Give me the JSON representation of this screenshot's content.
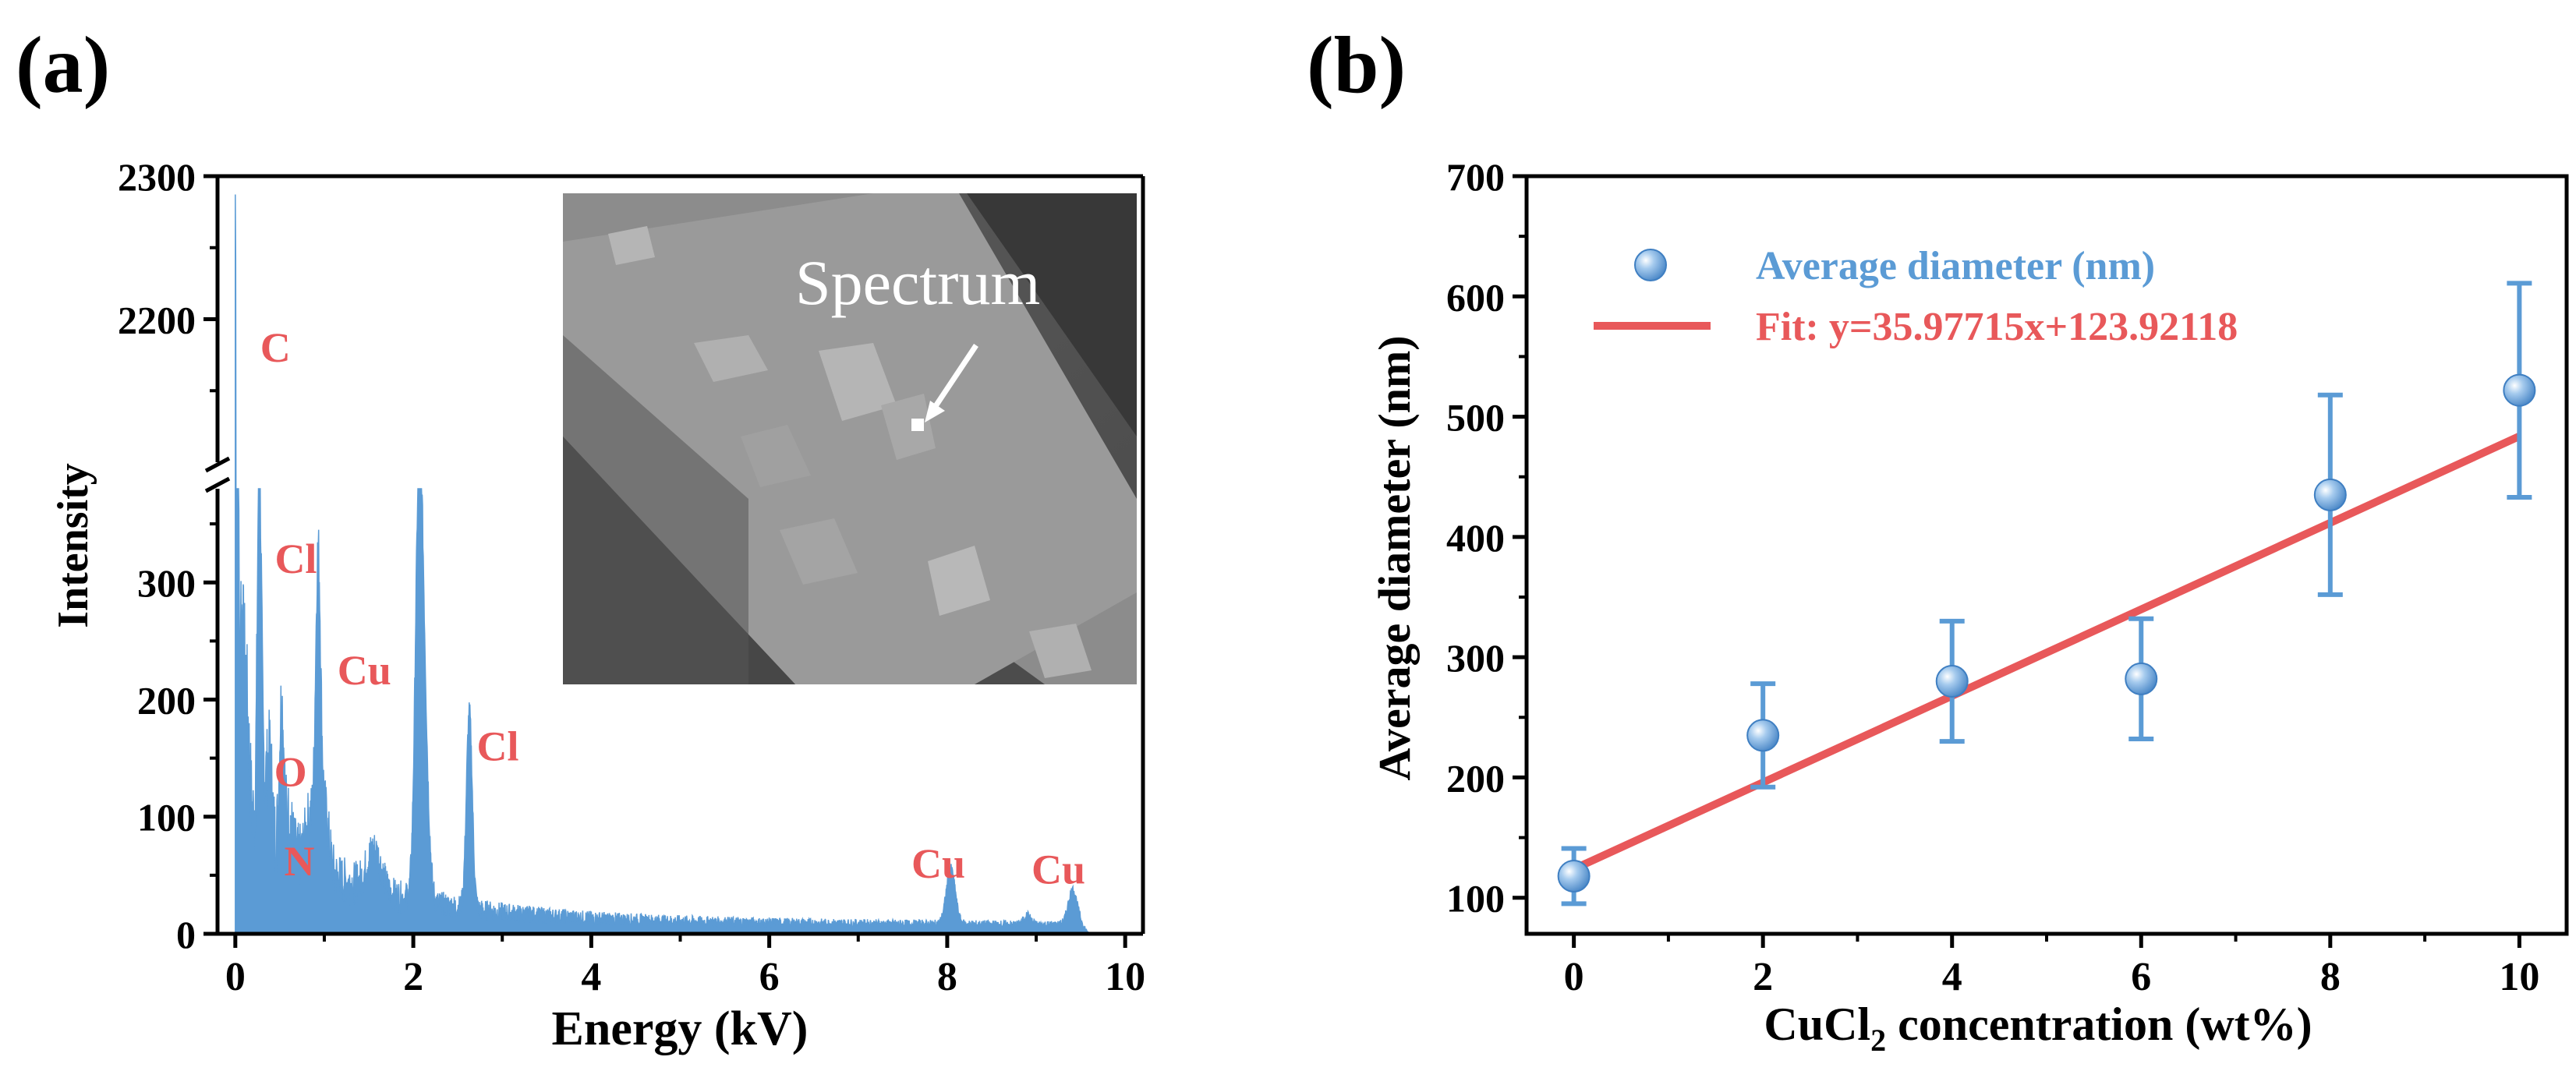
{
  "panel_a_label": "(a)",
  "panel_b_label": "(b)",
  "chart_data": [
    {
      "type": "area",
      "id": "eds-spectrum",
      "title": "",
      "xlabel": "Energy (kV)",
      "ylabel": "Intensity",
      "xlim": [
        -0.2,
        10.2
      ],
      "ylim_lower": [
        0,
        380
      ],
      "ylim_upper": [
        2100,
        2300
      ],
      "x_ticks": [
        "0",
        "2",
        "4",
        "6",
        "8",
        "10"
      ],
      "y_ticks_lower": [
        "0",
        "100",
        "200",
        "300"
      ],
      "y_ticks_upper": [
        "2200",
        "2300"
      ],
      "broken_axis": true,
      "color": "#5B9BD5",
      "peaks": [
        {
          "x": 0.0,
          "y": 2178,
          "width": 0.018
        },
        {
          "x": 0.05,
          "y": 180,
          "width": 0.05
        },
        {
          "x": 0.13,
          "y": 60,
          "width": 0.03
        },
        {
          "x": 0.27,
          "y": 325,
          "width": 0.022
        },
        {
          "x": 0.33,
          "y": 45,
          "width": 0.03
        },
        {
          "x": 0.39,
          "y": 68,
          "width": 0.025
        },
        {
          "x": 0.52,
          "y": 122,
          "width": 0.025
        },
        {
          "x": 0.6,
          "y": 30,
          "width": 0.04
        },
        {
          "x": 0.84,
          "y": 40,
          "width": 0.05
        },
        {
          "x": 0.93,
          "y": 245,
          "width": 0.028
        },
        {
          "x": 1.0,
          "y": 55,
          "width": 0.05
        },
        {
          "x": 1.56,
          "y": 35,
          "width": 0.08
        },
        {
          "x": 2.06,
          "y": 270,
          "width": 0.04
        },
        {
          "x": 2.11,
          "y": 180,
          "width": 0.05
        },
        {
          "x": 2.63,
          "y": 168,
          "width": 0.033
        },
        {
          "x": 8.04,
          "y": 48,
          "width": 0.05
        },
        {
          "x": 8.9,
          "y": 8,
          "width": 0.04
        },
        {
          "x": 9.41,
          "y": 30,
          "width": 0.05
        }
      ],
      "annotations": [
        {
          "text": "C",
          "x": 0.45,
          "y": 2180,
          "axis": "upper"
        },
        {
          "text": "Cl",
          "x": 0.68,
          "y": 320
        },
        {
          "text": "Cu",
          "x": 1.45,
          "y": 225
        },
        {
          "text": "Cl",
          "x": 2.95,
          "y": 160
        },
        {
          "text": "O",
          "x": 0.62,
          "y": 138
        },
        {
          "text": "N",
          "x": 0.72,
          "y": 62
        },
        {
          "text": "Cu",
          "x": 7.9,
          "y": 60
        },
        {
          "text": "Cu",
          "x": 9.25,
          "y": 55
        }
      ],
      "inset_label": "Spectrum",
      "annotation_color": "#E8585A"
    },
    {
      "type": "scatter",
      "id": "diameter-fit",
      "title": "",
      "xlabel": "CuCl2 concentration (wt%)",
      "xlabel_main": "CuCl",
      "xlabel_sub": "2",
      "xlabel_rest": " concentration (wt%)",
      "ylabel": "Average diameter (nm)",
      "xlim": [
        -0.5,
        10.5
      ],
      "ylim": [
        70,
        700
      ],
      "x_ticks": [
        "0",
        "2",
        "4",
        "6",
        "8",
        "10"
      ],
      "y_ticks": [
        "100",
        "200",
        "300",
        "400",
        "500",
        "600",
        "700"
      ],
      "series": [
        {
          "name": "Average diameter (nm)",
          "type": "scatter",
          "color": "#5B9BD5",
          "x": [
            0,
            2,
            4,
            6,
            8,
            10
          ],
          "y": [
            118,
            235,
            280,
            282,
            435,
            522
          ],
          "err": [
            23,
            43,
            50,
            50,
            83,
            89
          ]
        },
        {
          "name": "Fit: y=35.97715x+123.92118",
          "type": "line",
          "color": "#E8585A",
          "slope": 35.97715,
          "intercept": 123.92118,
          "x_range": [
            0,
            10
          ]
        }
      ],
      "legend_position": "top-left"
    }
  ]
}
